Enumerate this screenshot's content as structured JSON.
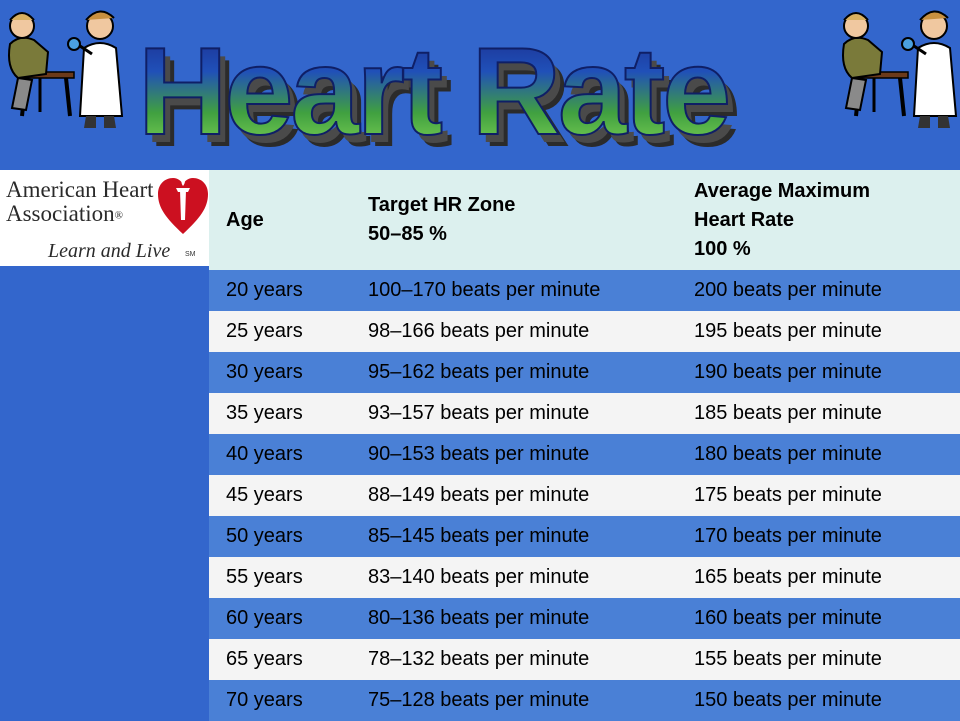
{
  "slide": {
    "title": "Heart Rate",
    "background_color": "#3366cc"
  },
  "logo": {
    "line1": "American Heart",
    "line2": "Association",
    "registered": "®",
    "tagline": "Learn and Live",
    "service_mark": "SM"
  },
  "table": {
    "headers": {
      "age": "Age",
      "target": [
        "Target HR Zone",
        "50–85 %"
      ],
      "max": [
        "Average Maximum",
        "Heart Rate",
        "100 %"
      ]
    },
    "rows": [
      {
        "age": "20 years",
        "target": "100–170 beats per minute",
        "max": "200 beats per minute"
      },
      {
        "age": "25 years",
        "target": "98–166 beats per minute",
        "max": "195 beats per minute"
      },
      {
        "age": "30 years",
        "target": "95–162 beats per minute",
        "max": "190 beats per minute"
      },
      {
        "age": "35 years",
        "target": "93–157 beats per minute",
        "max": "185 beats per minute"
      },
      {
        "age": "40 years",
        "target": "90–153 beats per minute",
        "max": "180 beats per minute"
      },
      {
        "age": "45 years",
        "target": "88–149 beats per minute",
        "max": "175 beats per minute"
      },
      {
        "age": "50 years",
        "target": "85–145 beats per minute",
        "max": "170 beats per minute"
      },
      {
        "age": "55 years",
        "target": "83–140 beats per minute",
        "max": "165 beats per minute"
      },
      {
        "age": "60 years",
        "target": "80–136 beats per minute",
        "max": "160 beats per minute"
      },
      {
        "age": "65 years",
        "target": "78–132 beats per minute",
        "max": "155 beats per minute"
      },
      {
        "age": "70 years",
        "target": "75–128 beats per minute",
        "max": "150 beats per minute"
      }
    ],
    "colors": {
      "header_bg": "#dcf0ee",
      "odd_row_bg": "#4a80d6",
      "even_row_bg": "#f4f4f4"
    }
  },
  "clipart": {
    "left": "doctor-patient-clipart",
    "right": "doctor-patient-clipart"
  }
}
